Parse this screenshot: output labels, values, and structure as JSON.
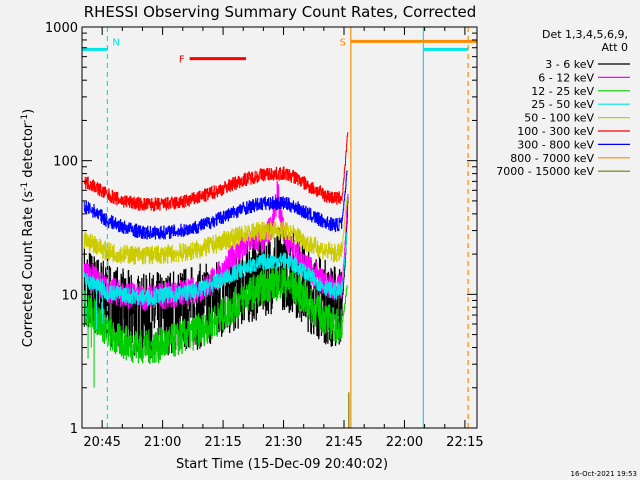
{
  "chart_data": {
    "type": "line",
    "title": "RHESSI Observing Summary Count Rates, Corrected",
    "xlabel": "Start Time (15-Dec-09 20:40:02)",
    "ylabel_main": "Corrected Count Rate (s",
    "ylabel_sup1": "-1",
    "ylabel_mid": " detector",
    "ylabel_sup2": "-1",
    "ylabel_end": ")",
    "yscale": "log",
    "ylim": [
      1,
      1000
    ],
    "xlim_minutes": [
      40.0,
      138.0
    ],
    "x_ticks": [
      {
        "label": "20:45",
        "min": 45
      },
      {
        "label": "21:00",
        "min": 60
      },
      {
        "label": "21:15",
        "min": 75
      },
      {
        "label": "21:30",
        "min": 90
      },
      {
        "label": "21:45",
        "min": 105
      },
      {
        "label": "22:00",
        "min": 120
      },
      {
        "label": "22:15",
        "min": 135
      }
    ],
    "y_ticks": [
      {
        "label": "1",
        "v": 1
      },
      {
        "label": "10",
        "v": 10
      },
      {
        "label": "100",
        "v": 100
      },
      {
        "label": "1000",
        "v": 1000
      }
    ],
    "legend": {
      "header1": "Det 1,3,4,5,6,9,",
      "header2": "Att 0",
      "entries": [
        {
          "label": "3 - 6 keV",
          "color": "#000000"
        },
        {
          "label": "6 - 12 keV",
          "color": "#ff00ff"
        },
        {
          "label": "12 - 25 keV",
          "color": "#00cc00"
        },
        {
          "label": "25 - 50 keV",
          "color": "#00e5e5"
        },
        {
          "label": "50 - 100 keV",
          "color": "#cccc00"
        },
        {
          "label": "100 - 300 keV",
          "color": "#ff0000"
        },
        {
          "label": "300 - 800 keV",
          "color": "#0000ff"
        },
        {
          "label": "800 - 7000 keV",
          "color": "#ff8c00"
        },
        {
          "label": "7000 - 15000 keV",
          "color": "#6b7f00"
        }
      ]
    },
    "series": [
      {
        "label_ref": "3 - 6 keV",
        "color": "#000000",
        "noise": 0.32,
        "points": [
          [
            40.5,
            12
          ],
          [
            43,
            10
          ],
          [
            46,
            9
          ],
          [
            50,
            7.5
          ],
          [
            55,
            6.8
          ],
          [
            60,
            7.2
          ],
          [
            65,
            7.8
          ],
          [
            70,
            8.2
          ],
          [
            75,
            9.5
          ],
          [
            80,
            12
          ],
          [
            85,
            14
          ],
          [
            88,
            15.5
          ],
          [
            90,
            16
          ],
          [
            93,
            14
          ],
          [
            96,
            11
          ],
          [
            99,
            9.5
          ],
          [
            101,
            8.5
          ],
          [
            103,
            8.0
          ],
          [
            104.5,
            8.5
          ],
          [
            105.3,
            18
          ],
          [
            105.8,
            38
          ],
          [
            106.0,
            55
          ]
        ]
      },
      {
        "label_ref": "6 - 12 keV",
        "color": "#ff00ff",
        "noise": 0.1,
        "points": [
          [
            40.5,
            15
          ],
          [
            43,
            13
          ],
          [
            46,
            11
          ],
          [
            50,
            10
          ],
          [
            55,
            9.5
          ],
          [
            60,
            9.8
          ],
          [
            65,
            10.2
          ],
          [
            70,
            11
          ],
          [
            75,
            15
          ],
          [
            78,
            20
          ],
          [
            80,
            22
          ],
          [
            82,
            26
          ],
          [
            85,
            25
          ],
          [
            87,
            33
          ],
          [
            88,
            45
          ],
          [
            88.5,
            62
          ],
          [
            89,
            40
          ],
          [
            90,
            30
          ],
          [
            91,
            25
          ],
          [
            93,
            20
          ],
          [
            96,
            16
          ],
          [
            99,
            13
          ],
          [
            101,
            12
          ],
          [
            103,
            11
          ],
          [
            104.5,
            11.5
          ],
          [
            105.3,
            25
          ],
          [
            105.8,
            50
          ],
          [
            106.0,
            60
          ]
        ]
      },
      {
        "label_ref": "12 - 25 keV",
        "color": "#00cc00",
        "noise": 0.13,
        "points": [
          [
            40.5,
            8
          ],
          [
            43,
            7
          ],
          [
            46,
            5.5
          ],
          [
            48,
            4.6
          ],
          [
            52,
            4.2
          ],
          [
            56,
            4.0
          ],
          [
            60,
            4.2
          ],
          [
            65,
            4.8
          ],
          [
            70,
            5.5
          ],
          [
            75,
            7
          ],
          [
            80,
            9.5
          ],
          [
            85,
            11.5
          ],
          [
            90,
            12.5
          ],
          [
            93,
            11
          ],
          [
            96,
            8.5
          ],
          [
            99,
            7.2
          ],
          [
            101,
            6.4
          ],
          [
            103,
            5.8
          ],
          [
            104.5,
            6.0
          ],
          [
            105.3,
            9
          ],
          [
            105.8,
            12
          ]
        ]
      },
      {
        "label_ref": "25 - 50 keV",
        "color": "#00e5e5",
        "noise": 0.06,
        "points": [
          [
            40.5,
            13
          ],
          [
            43,
            12
          ],
          [
            46,
            10.5
          ],
          [
            50,
            10
          ],
          [
            55,
            9.5
          ],
          [
            60,
            9.8
          ],
          [
            65,
            10.2
          ],
          [
            70,
            11
          ],
          [
            75,
            13
          ],
          [
            80,
            15.5
          ],
          [
            85,
            17.5
          ],
          [
            90,
            18
          ],
          [
            93,
            16.5
          ],
          [
            96,
            14
          ],
          [
            99,
            12
          ],
          [
            101,
            11
          ],
          [
            103,
            10.5
          ],
          [
            104.5,
            10.8
          ],
          [
            105.3,
            20
          ],
          [
            105.8,
            30
          ]
        ]
      },
      {
        "label_ref": "50 - 100 keV",
        "color": "#cccc00",
        "noise": 0.07,
        "points": [
          [
            40.5,
            25
          ],
          [
            43,
            24
          ],
          [
            46,
            21
          ],
          [
            50,
            20
          ],
          [
            55,
            19.5
          ],
          [
            60,
            19.8
          ],
          [
            65,
            20.5
          ],
          [
            70,
            22
          ],
          [
            75,
            25
          ],
          [
            80,
            28
          ],
          [
            85,
            30
          ],
          [
            90,
            30
          ],
          [
            93,
            28
          ],
          [
            96,
            24
          ],
          [
            99,
            22
          ],
          [
            101,
            21
          ],
          [
            103,
            20
          ],
          [
            104.5,
            21
          ],
          [
            105.3,
            40
          ],
          [
            105.8,
            55
          ]
        ]
      },
      {
        "label_ref": "100 - 300 keV",
        "color": "#ff0000",
        "noise": 0.05,
        "points": [
          [
            40.5,
            70
          ],
          [
            43,
            65
          ],
          [
            46,
            56
          ],
          [
            50,
            50
          ],
          [
            55,
            47
          ],
          [
            60,
            47
          ],
          [
            65,
            49
          ],
          [
            70,
            54
          ],
          [
            75,
            62
          ],
          [
            80,
            72
          ],
          [
            85,
            79
          ],
          [
            90,
            80
          ],
          [
            93,
            75
          ],
          [
            96,
            65
          ],
          [
            99,
            58
          ],
          [
            101,
            54
          ],
          [
            103,
            52
          ],
          [
            104.5,
            53
          ],
          [
            105.3,
            95
          ],
          [
            105.8,
            150
          ],
          [
            106.0,
            160
          ]
        ]
      },
      {
        "label_ref": "300 - 800 keV",
        "color": "#0000ff",
        "noise": 0.05,
        "points": [
          [
            40.5,
            45
          ],
          [
            43,
            42
          ],
          [
            46,
            36
          ],
          [
            50,
            32
          ],
          [
            55,
            29
          ],
          [
            60,
            29
          ],
          [
            65,
            30
          ],
          [
            70,
            33
          ],
          [
            75,
            38
          ],
          [
            80,
            44
          ],
          [
            85,
            48
          ],
          [
            90,
            48
          ],
          [
            93,
            45
          ],
          [
            96,
            40
          ],
          [
            99,
            36
          ],
          [
            101,
            34
          ],
          [
            103,
            33
          ],
          [
            104.5,
            34
          ],
          [
            105.3,
            60
          ],
          [
            105.8,
            90
          ]
        ]
      }
    ],
    "segments": [
      {
        "color": "#00e5e5",
        "from": 40.0,
        "to": 46.3,
        "v": 680,
        "kind": "solid"
      },
      {
        "color": "#00e5e5",
        "from": 124.7,
        "to": 135.8,
        "v": 680,
        "kind": "solid"
      },
      {
        "color": "#ff0000",
        "from": 66.7,
        "to": 80.7,
        "v": 580,
        "kind": "solid"
      },
      {
        "color": "#ff8c00",
        "from": 106.7,
        "to": 138.0,
        "v": 780,
        "kind": "solid"
      }
    ],
    "verticals": [
      {
        "color": "#00e5e5",
        "min": 46.3,
        "kind": "dashed"
      },
      {
        "color": "#00e5e5",
        "min": 124.7,
        "kind": "solid"
      },
      {
        "color": "#ff8c00",
        "min": 106.7,
        "kind": "solid"
      },
      {
        "color": "#ff8c00",
        "min": 135.8,
        "kind": "dashed"
      }
    ],
    "flags": [
      {
        "text": "N",
        "color": "#00e5e5",
        "min": 46.3,
        "v": 780,
        "side": "right"
      },
      {
        "text": "F",
        "color": "#ff0000",
        "min": 66.7,
        "v": 580,
        "side": "left"
      },
      {
        "text": "S",
        "color": "#ff8c00",
        "min": 106.7,
        "v": 780,
        "side": "left"
      }
    ],
    "timestamp": "16-Oct-2021 19:53"
  }
}
